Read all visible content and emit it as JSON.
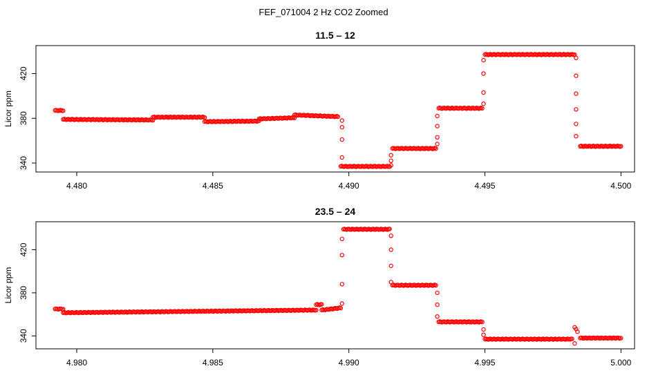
{
  "title": "FEF_071004  2 Hz CO2 Zoomed",
  "colors": {
    "points": "#ff0000",
    "axis": "#000000"
  },
  "chart_data": [
    {
      "type": "scatter",
      "title": "11.5 – 12",
      "xlabel": "",
      "ylabel": "Licor ppm",
      "xlim": [
        4.4785,
        4.5005
      ],
      "ylim": [
        332,
        445
      ],
      "xticks": [
        "4.480",
        "4.485",
        "4.490",
        "4.495",
        "4.500"
      ],
      "yticks": [
        "340",
        "380",
        "420"
      ],
      "grid": false,
      "marker": "open-circle",
      "segments": [
        {
          "x0": 4.4792,
          "x1": 4.4795,
          "y0": 387,
          "y1": 387
        },
        {
          "x0": 4.4795,
          "x1": 4.4828,
          "y0": 379,
          "y1": 378.5
        },
        {
          "x0": 4.4828,
          "x1": 4.4847,
          "y0": 381,
          "y1": 381
        },
        {
          "x0": 4.4847,
          "x1": 4.4867,
          "y0": 377,
          "y1": 377.5
        },
        {
          "x0": 4.4867,
          "x1": 4.488,
          "y0": 379.5,
          "y1": 380.5
        },
        {
          "x0": 4.488,
          "x1": 4.4896,
          "y0": 383,
          "y1": 381.5
        },
        {
          "x0": 4.4897,
          "x1": 4.4915,
          "y0": 337,
          "y1": 337
        },
        {
          "x0": 4.4916,
          "x1": 4.4932,
          "y0": 353,
          "y1": 353
        },
        {
          "x0": 4.4933,
          "x1": 4.4949,
          "y0": 389,
          "y1": 389
        },
        {
          "x0": 4.495,
          "x1": 4.4983,
          "y0": 437,
          "y1": 437
        },
        {
          "x0": 4.4985,
          "x1": 4.5,
          "y0": 355,
          "y1": 355
        }
      ],
      "transitions": [
        {
          "x": 4.48975,
          "y": [
            378,
            372,
            361,
            345
          ]
        },
        {
          "x": 4.49155,
          "y": [
            338,
            342,
            347
          ]
        },
        {
          "x": 4.49325,
          "y": [
            357,
            363,
            373,
            382
          ]
        },
        {
          "x": 4.49495,
          "y": [
            393,
            403,
            420,
            432
          ]
        },
        {
          "x": 4.49835,
          "y": [
            434,
            418,
            402,
            388,
            375,
            364
          ]
        }
      ]
    },
    {
      "type": "scatter",
      "title": "23.5 – 24",
      "xlabel": "",
      "ylabel": "Licor ppm",
      "xlim": [
        4.9785,
        5.0005
      ],
      "ylim": [
        328,
        446
      ],
      "xticks": [
        "4.980",
        "4.985",
        "4.990",
        "4.995",
        "5.000"
      ],
      "yticks": [
        "340",
        "380",
        "420"
      ],
      "grid": false,
      "marker": "open-circle",
      "segments": [
        {
          "x0": 4.9792,
          "x1": 4.9795,
          "y0": 365,
          "y1": 365
        },
        {
          "x0": 4.9795,
          "x1": 4.9888,
          "y0": 361.5,
          "y1": 364
        },
        {
          "x0": 4.9888,
          "x1": 4.989,
          "y0": 369,
          "y1": 369
        },
        {
          "x0": 4.989,
          "x1": 4.9897,
          "y0": 364,
          "y1": 366
        },
        {
          "x0": 4.9898,
          "x1": 4.9915,
          "y0": 439,
          "y1": 439
        },
        {
          "x0": 4.9916,
          "x1": 4.9932,
          "y0": 387,
          "y1": 387
        },
        {
          "x0": 4.9933,
          "x1": 4.9949,
          "y0": 353,
          "y1": 353
        },
        {
          "x0": 4.995,
          "x1": 4.9982,
          "y0": 337,
          "y1": 337
        },
        {
          "x0": 4.9983,
          "x1": 4.9984,
          "y0": 348,
          "y1": 344
        },
        {
          "x0": 4.9985,
          "x1": 5.0,
          "y0": 338,
          "y1": 338
        }
      ],
      "transitions": [
        {
          "x": 4.98975,
          "y": [
            370,
            388,
            415,
            430
          ]
        },
        {
          "x": 4.99155,
          "y": [
            433,
            420,
            405,
            390
          ]
        },
        {
          "x": 4.99325,
          "y": [
            380,
            369,
            358
          ]
        },
        {
          "x": 4.99495,
          "y": [
            346,
            341
          ]
        },
        {
          "x": 4.9983,
          "y": [
            333
          ]
        }
      ]
    }
  ]
}
